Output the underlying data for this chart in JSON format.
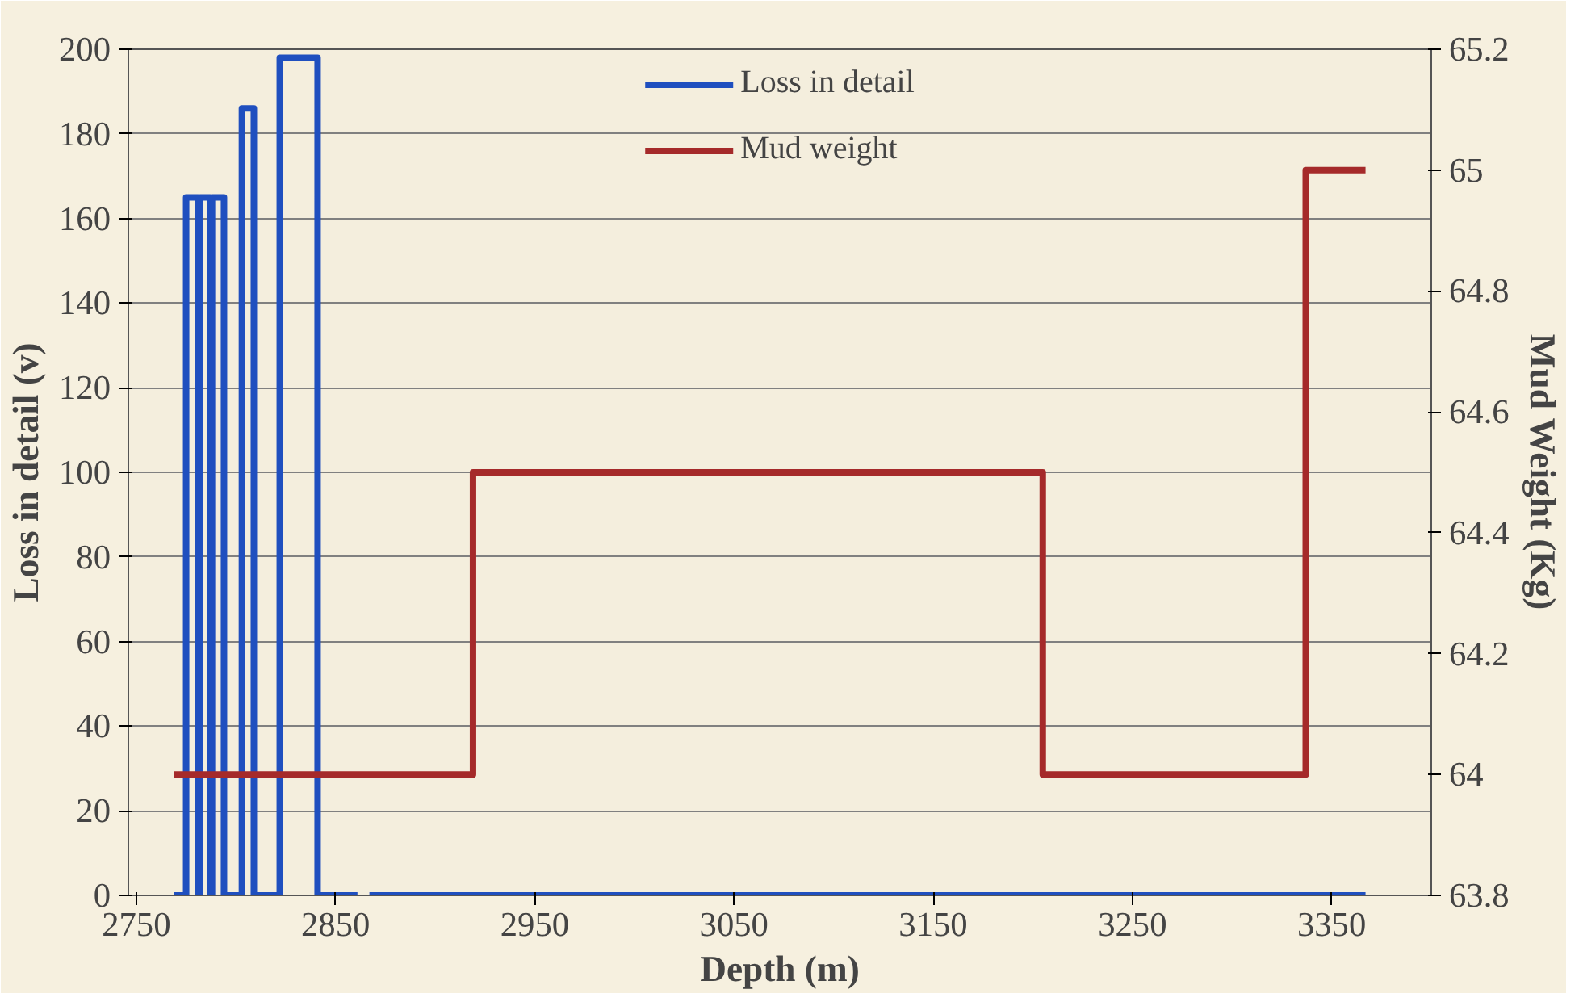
{
  "chart_data": {
    "type": "line",
    "xlabel": "Depth (m)",
    "ylabel": "Loss in detail (v)",
    "y2label": "Mud Weight (Kg)",
    "xlim": [
      2746,
      3400
    ],
    "xticks": [
      2750,
      2850,
      2950,
      3050,
      3150,
      3250,
      3350
    ],
    "ylim": [
      0,
      200
    ],
    "yticks": [
      0,
      20,
      40,
      60,
      80,
      100,
      120,
      140,
      160,
      180,
      200
    ],
    "y2lim": [
      63.8,
      65.2
    ],
    "y2ticks": [
      63.8,
      64,
      64.2,
      64.4,
      64.6,
      64.8,
      65,
      65.2
    ],
    "grid": "y",
    "legend": "top",
    "line_style": "solid",
    "marker": "none",
    "series": [
      {
        "name": "Loss in detail",
        "color": "#1f4fbf",
        "x": [
          2769,
          2775,
          2775,
          2781,
          2781,
          2782,
          2782,
          2787,
          2787,
          2788,
          2788,
          2794,
          2794,
          2803,
          2803,
          2809,
          2809,
          2822,
          2822,
          2841,
          2841,
          2861,
          null,
          2867,
          3367
        ],
        "values": [
          0,
          0,
          165,
          165,
          0,
          0,
          165,
          165,
          0,
          0,
          165,
          165,
          0,
          0,
          186,
          186,
          0,
          0,
          198,
          198,
          0,
          0,
          null,
          0,
          0
        ]
      },
      {
        "name": "Mud weight",
        "color": "#a52a2a",
        "axis": "y2",
        "x": [
          2769,
          2919,
          2919,
          3205,
          3205,
          3337,
          3337,
          3367
        ],
        "values": [
          64,
          64,
          64.5,
          64.5,
          64,
          64,
          65,
          65
        ]
      }
    ]
  }
}
